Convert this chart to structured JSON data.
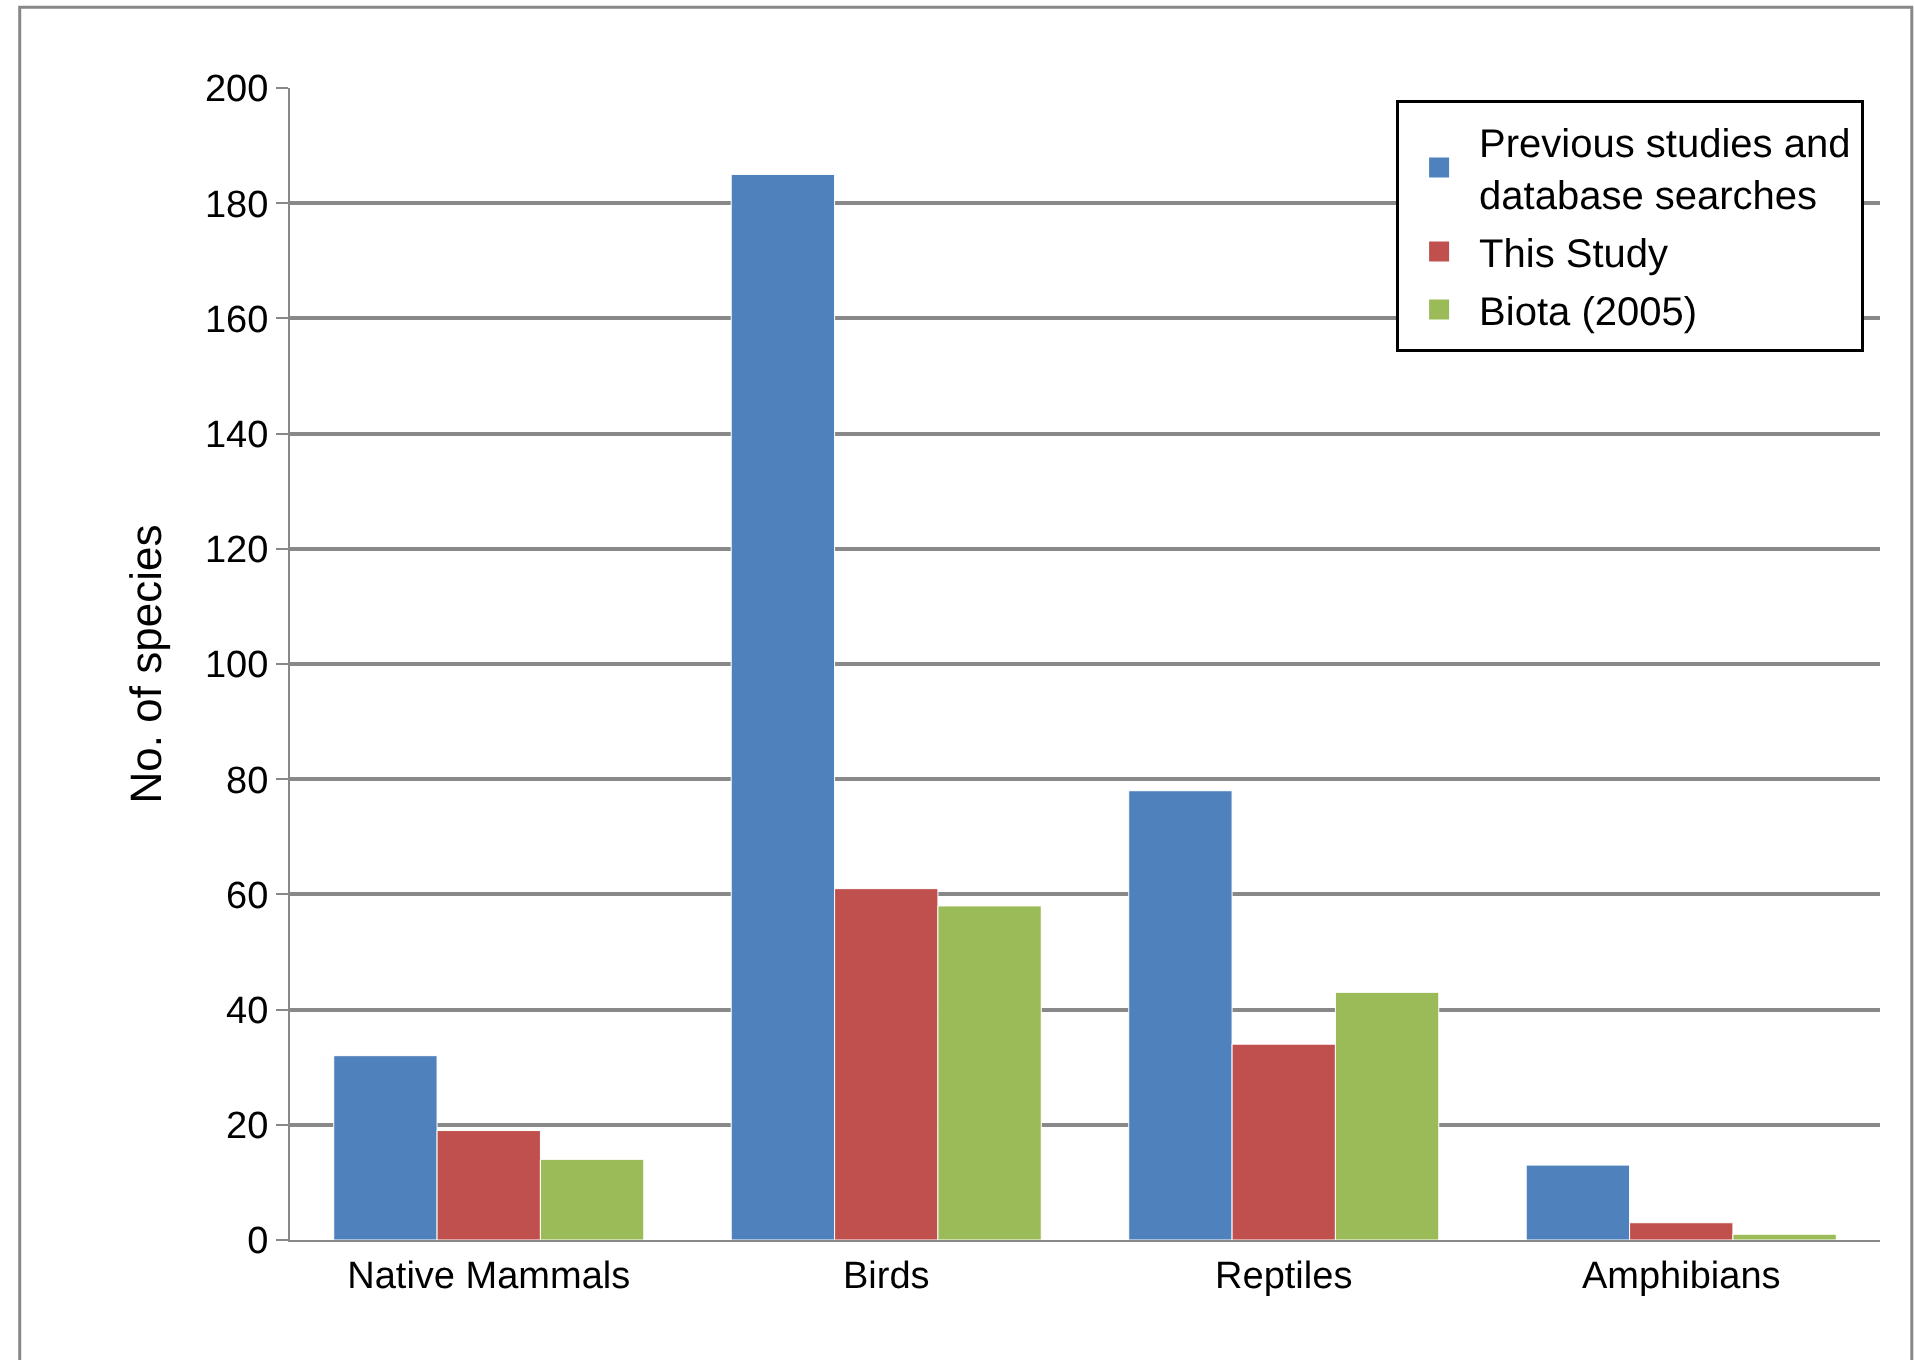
{
  "chart_data": {
    "type": "bar",
    "ylabel": "No. of species",
    "categories": [
      "Native Mammals",
      "Birds",
      "Reptiles",
      "Amphibians"
    ],
    "series": [
      {
        "name": "Previous studies and database searches",
        "color": "#4f81bd",
        "values": [
          32,
          185,
          78,
          13
        ]
      },
      {
        "name": "This Study",
        "color": "#c0504d",
        "values": [
          19,
          61,
          34,
          3
        ]
      },
      {
        "name": "Biota (2005)",
        "color": "#9bbb59",
        "values": [
          14,
          58,
          43,
          1
        ]
      }
    ],
    "ylim": [
      0,
      200
    ],
    "yticks": [
      0,
      20,
      40,
      60,
      80,
      100,
      120,
      140,
      160,
      180,
      200
    ],
    "grid": "y",
    "legend": "top right"
  }
}
